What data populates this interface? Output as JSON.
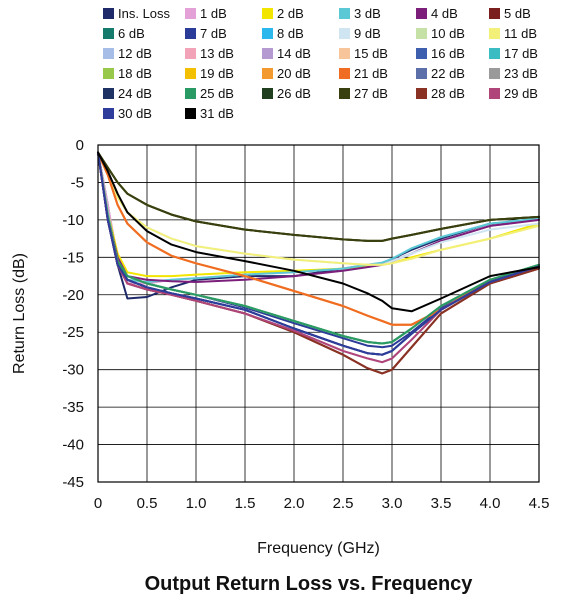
{
  "chart_data": {
    "type": "line",
    "title": "Output Return Loss vs. Frequency",
    "xlabel": "Frequency (GHz)",
    "ylabel": "Return Loss (dB)",
    "xlim": [
      0,
      4.5
    ],
    "ylim": [
      -45,
      0
    ],
    "xticks": [
      "0",
      "0.5",
      "1.0",
      "1.5",
      "2.0",
      "2.5",
      "3.0",
      "3.5",
      "4.0",
      "4.5"
    ],
    "yticks": [
      "0",
      "-5",
      "-10",
      "-15",
      "-20",
      "-25",
      "-30",
      "-35",
      "-40",
      "-45"
    ],
    "grid": true,
    "legend_position": "top",
    "x": [
      0.0,
      0.1,
      0.2,
      0.3,
      0.5,
      0.75,
      1.0,
      1.5,
      2.0,
      2.5,
      2.75,
      2.9,
      3.0,
      3.2,
      3.5,
      4.0,
      4.5
    ],
    "series": [
      {
        "name": "Ins. Loss",
        "color": "#1f2a6b",
        "values": [
          -1,
          -8,
          -16,
          -20.5,
          -20.3,
          -19,
          -18,
          -17.5,
          -17.5,
          -16.5,
          -16,
          -15.8,
          -15.2,
          -14,
          -12.5,
          -10.5,
          -10
        ]
      },
      {
        "name": "1 dB",
        "color": "#e3a1d7",
        "values": [
          -1,
          -8,
          -15,
          -18.5,
          -18.5,
          -18,
          -17.8,
          -17.3,
          -17,
          -16.5,
          -16,
          -15.8,
          -15.5,
          -14.5,
          -12.8,
          -10.8,
          -10
        ]
      },
      {
        "name": "2 dB",
        "color": "#f2e600",
        "values": [
          -1,
          -9,
          -14.5,
          -17,
          -17.5,
          -17.5,
          -17.3,
          -17,
          -16.8,
          -16.5,
          -16.2,
          -16,
          -15.8,
          -15,
          -14,
          -12.5,
          -10.5
        ]
      },
      {
        "name": "3 dB",
        "color": "#5bc8d6",
        "values": [
          -1,
          -9,
          -15.5,
          -18,
          -18.3,
          -18,
          -17.8,
          -17.3,
          -17,
          -16.5,
          -16,
          -15.7,
          -15.2,
          -13.8,
          -12.3,
          -10.5,
          -9.8
        ]
      },
      {
        "name": "4 dB",
        "color": "#7b1f7b",
        "values": [
          -1,
          -9.5,
          -15,
          -17.5,
          -18,
          -18.2,
          -18.3,
          -18,
          -17.5,
          -16.8,
          -16.3,
          -16,
          -15.5,
          -14.5,
          -12.8,
          -10.8,
          -10
        ]
      },
      {
        "name": "5 dB",
        "color": "#7a1e1e",
        "values": [
          -1,
          -10,
          -16,
          -18,
          -19,
          -20,
          -20.8,
          -22.5,
          -25,
          -28,
          -29.8,
          -30.5,
          -30,
          -27,
          -22.5,
          -18.5,
          -16.5
        ]
      },
      {
        "name": "6 dB",
        "color": "#147a6c",
        "values": [
          -1,
          -10,
          -15.5,
          -17.5,
          -18.5,
          -19.3,
          -20,
          -21.5,
          -23.5,
          -25.5,
          -26.3,
          -26.5,
          -26.3,
          -24.5,
          -21.5,
          -18,
          -16
        ]
      },
      {
        "name": "7 dB",
        "color": "#2b3b98",
        "values": [
          -1,
          -10,
          -15.5,
          -17.5,
          -18.5,
          -19.3,
          -20,
          -21.7,
          -23.8,
          -25.8,
          -26.8,
          -27,
          -26.8,
          -25,
          -21.8,
          -18.2,
          -16
        ]
      },
      {
        "name": "8 dB",
        "color": "#2cb8ec",
        "values": [
          -1,
          -10,
          -15.5,
          -17.5,
          -18.5,
          -19.3,
          -20,
          -21.5,
          -23.5,
          -25.5,
          -26.3,
          -26.5,
          -26.3,
          -24.5,
          -21.5,
          -18,
          -16
        ]
      },
      {
        "name": "9 dB",
        "color": "#cfe6f2",
        "values": [
          -1,
          -4,
          -7,
          -9,
          -11,
          -12.5,
          -13.5,
          -14.5,
          -15.3,
          -15.8,
          -16,
          -16,
          -15.5,
          -14.5,
          -13,
          -11.3,
          -10.5
        ]
      },
      {
        "name": "10 dB",
        "color": "#c5e1a5",
        "values": [
          -1,
          -9.5,
          -15.5,
          -17.5,
          -18.5,
          -19.3,
          -20,
          -21.5,
          -23.5,
          -25.5,
          -26.3,
          -26.5,
          -26.3,
          -24.5,
          -21.5,
          -18,
          -16
        ]
      },
      {
        "name": "11 dB",
        "color": "#f3f07a",
        "values": [
          -1,
          -4,
          -7,
          -9,
          -11,
          -12.5,
          -13.5,
          -14.5,
          -15.3,
          -15.8,
          -16,
          -16,
          -15.8,
          -15.2,
          -14,
          -12.5,
          -10.8
        ]
      },
      {
        "name": "12 dB",
        "color": "#a6bde8",
        "values": [
          -1,
          -9.5,
          -15.5,
          -17.5,
          -18.5,
          -19.3,
          -20,
          -21.5,
          -23.5,
          -25.5,
          -26.3,
          -26.5,
          -26.3,
          -24.5,
          -21.5,
          -18,
          -16
        ]
      },
      {
        "name": "13 dB",
        "color": "#f3a3b8",
        "values": [
          -1,
          -4,
          -8,
          -10.5,
          -13,
          -14.8,
          -15.8,
          -17.5,
          -19.5,
          -21.5,
          -22.8,
          -23.5,
          -24,
          -24,
          -22,
          -18,
          -16.3
        ]
      },
      {
        "name": "14 dB",
        "color": "#b49ad0",
        "values": [
          -1,
          -10,
          -16,
          -18.5,
          -19.3,
          -20,
          -20.8,
          -22.5,
          -24.8,
          -27.5,
          -28.5,
          -29,
          -28.5,
          -26,
          -22,
          -18.3,
          -16.2
        ]
      },
      {
        "name": "15 dB",
        "color": "#f8c59a",
        "values": [
          -1,
          -4,
          -8,
          -10.5,
          -13,
          -14.8,
          -15.8,
          -17.5,
          -19.5,
          -21.5,
          -22.8,
          -23.5,
          -24,
          -24,
          -22,
          -18,
          -16.3
        ]
      },
      {
        "name": "16 dB",
        "color": "#3d5fad",
        "values": [
          -1,
          -10,
          -16,
          -18,
          -19,
          -19.8,
          -20.5,
          -22,
          -24.5,
          -26.8,
          -27.8,
          -28,
          -27.5,
          -25.2,
          -22,
          -18.3,
          -16.2
        ]
      },
      {
        "name": "17 dB",
        "color": "#3bbcc2",
        "values": [
          -1,
          -9.5,
          -15.5,
          -17.5,
          -18.5,
          -19.3,
          -20,
          -21.5,
          -23.5,
          -25.5,
          -26.3,
          -26.5,
          -26.3,
          -24.5,
          -21.5,
          -18,
          -16
        ]
      },
      {
        "name": "18 dB",
        "color": "#98c84a",
        "values": [
          -1,
          -9.5,
          -15.5,
          -17.5,
          -18.5,
          -19.3,
          -20,
          -21.5,
          -23.5,
          -25.5,
          -26.3,
          -26.5,
          -26.3,
          -24.5,
          -21.5,
          -18,
          -16
        ]
      },
      {
        "name": "19 dB",
        "color": "#f2c000",
        "values": [
          -1,
          -3,
          -5,
          -6.5,
          -8,
          -9.3,
          -10.2,
          -11.3,
          -12,
          -12.6,
          -12.8,
          -12.8,
          -12.5,
          -12,
          -11.2,
          -10,
          -9.6
        ]
      },
      {
        "name": "20 dB",
        "color": "#f29a2e",
        "values": [
          -1,
          -4,
          -8,
          -10.5,
          -13,
          -14.8,
          -15.8,
          -17.5,
          -19.5,
          -21.5,
          -22.8,
          -23.5,
          -24,
          -24,
          -22,
          -18,
          -16.3
        ]
      },
      {
        "name": "21 dB",
        "color": "#ef6c22",
        "values": [
          -1,
          -4,
          -8,
          -10.5,
          -13,
          -14.8,
          -15.8,
          -17.5,
          -19.5,
          -21.5,
          -22.8,
          -23.5,
          -24,
          -24,
          -22,
          -18,
          -16.3
        ]
      },
      {
        "name": "22 dB",
        "color": "#5c6fa8",
        "values": [
          -1,
          -10,
          -16,
          -18,
          -19,
          -19.8,
          -20.5,
          -22,
          -24.5,
          -26.8,
          -27.8,
          -28,
          -27.5,
          -25.2,
          -22,
          -18.3,
          -16.2
        ]
      },
      {
        "name": "23 dB",
        "color": "#9a9a9a",
        "values": [
          -1,
          -3,
          -5,
          -6.5,
          -8,
          -9.3,
          -10.2,
          -11.3,
          -12,
          -12.6,
          -12.8,
          -12.8,
          -12.5,
          -12,
          -11.2,
          -10,
          -9.6
        ]
      },
      {
        "name": "24 dB",
        "color": "#1e3263",
        "values": [
          -1,
          -10,
          -16,
          -18,
          -19,
          -19.8,
          -20.5,
          -22,
          -24.5,
          -26.8,
          -27.8,
          -28,
          -27.5,
          -25.2,
          -22,
          -18.3,
          -16.2
        ]
      },
      {
        "name": "25 dB",
        "color": "#2a9a64",
        "values": [
          -1,
          -9.5,
          -15.5,
          -17.5,
          -18.5,
          -19.3,
          -20,
          -21.5,
          -23.5,
          -25.5,
          -26.3,
          -26.5,
          -26.3,
          -24.5,
          -21.5,
          -18,
          -16
        ]
      },
      {
        "name": "26 dB",
        "color": "#1f3f1f",
        "values": [
          -1,
          -3,
          -5,
          -6.5,
          -8,
          -9.3,
          -10.2,
          -11.3,
          -12,
          -12.6,
          -12.8,
          -12.8,
          -12.5,
          -12,
          -11.2,
          -10,
          -9.6
        ]
      },
      {
        "name": "27 dB",
        "color": "#3a3f10",
        "values": [
          -1,
          -3,
          -5,
          -6.5,
          -8,
          -9.3,
          -10.2,
          -11.3,
          -12,
          -12.6,
          -12.8,
          -12.8,
          -12.5,
          -12,
          -11.2,
          -10,
          -9.6
        ]
      },
      {
        "name": "28 dB",
        "color": "#8a3324",
        "values": [
          -1,
          -10,
          -16,
          -18.5,
          -19.3,
          -20,
          -20.8,
          -22.5,
          -25,
          -28,
          -29.8,
          -30.5,
          -30,
          -27,
          -22.5,
          -18.5,
          -16.5
        ]
      },
      {
        "name": "29 dB",
        "color": "#b0457a",
        "values": [
          -1,
          -10,
          -16,
          -18.5,
          -19.3,
          -20,
          -20.8,
          -22.5,
          -24.8,
          -27.5,
          -28.5,
          -29,
          -28.5,
          -26,
          -22,
          -18.3,
          -16.2
        ]
      },
      {
        "name": "30 dB",
        "color": "#2e3d9c",
        "values": [
          -1,
          -10,
          -16,
          -18,
          -19,
          -19.8,
          -20.5,
          -22,
          -24.5,
          -26.8,
          -27.8,
          -28,
          -27.5,
          -25.2,
          -22,
          -18.3,
          -16.2
        ]
      },
      {
        "name": "31 dB",
        "color": "#000000",
        "values": [
          -1,
          -3.5,
          -6.5,
          -9,
          -11.5,
          -13.3,
          -14.3,
          -15.5,
          -16.8,
          -18.5,
          -19.8,
          -20.8,
          -21.8,
          -22.2,
          -20.5,
          -17.5,
          -16.3
        ]
      }
    ]
  }
}
